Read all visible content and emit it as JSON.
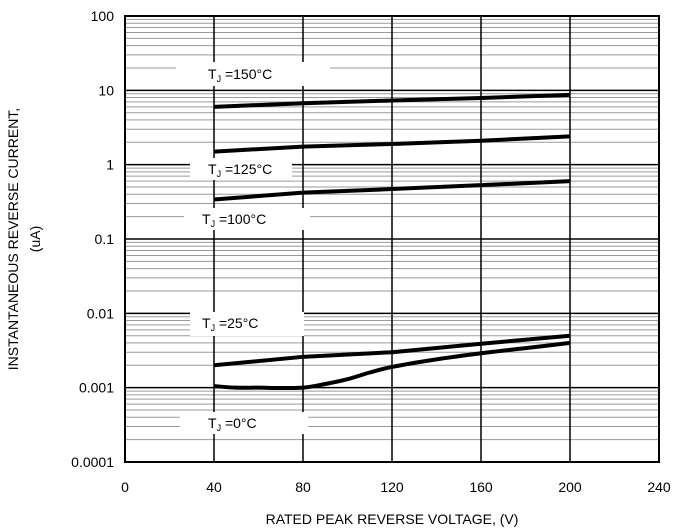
{
  "chart_data": {
    "type": "line",
    "title": "",
    "xlabel": "RATED PEAK REVERSE VOLTAGE, (V)",
    "ylabel_line1": "INSTANTANEOUS REVERSE CURRENT,",
    "ylabel_line2": "(uA)",
    "xlim": [
      0,
      240
    ],
    "ylim": [
      0.0001,
      100
    ],
    "yscale": "log",
    "grid": true,
    "x_ticks": [
      0,
      40,
      80,
      120,
      160,
      200,
      240
    ],
    "x_tick_labels": [
      "0",
      "40",
      "80",
      "120",
      "160",
      "200",
      "240"
    ],
    "y_ticks": [
      0.0001,
      0.001,
      0.01,
      0.1,
      1,
      10,
      100
    ],
    "y_tick_labels": [
      "0.0001",
      "0.001",
      "0.01",
      "0.1",
      "1",
      "10",
      "100"
    ],
    "series": [
      {
        "label_main": "T",
        "label_sub": "J",
        "label_rest": " =150°C",
        "x": [
          40,
          80,
          120,
          160,
          200
        ],
        "y": [
          6,
          6.7,
          7.3,
          7.9,
          8.7
        ]
      },
      {
        "label_main": "T",
        "label_sub": "J",
        "label_rest": " =125°C",
        "x": [
          40,
          80,
          120,
          160,
          200
        ],
        "y": [
          1.5,
          1.75,
          1.9,
          2.1,
          2.4
        ]
      },
      {
        "label_main": "T",
        "label_sub": "J",
        "label_rest": " =100°C",
        "x": [
          40,
          80,
          120,
          160,
          200
        ],
        "y": [
          0.34,
          0.42,
          0.47,
          0.53,
          0.6
        ]
      },
      {
        "label_main": "T",
        "label_sub": "J",
        "label_rest": " =25°C",
        "x": [
          40,
          80,
          120,
          160,
          200
        ],
        "y": [
          0.002,
          0.0026,
          0.003,
          0.0039,
          0.005
        ]
      },
      {
        "label_main": "T",
        "label_sub": "J",
        "label_rest": " =0°C",
        "x": [
          40,
          50,
          60,
          70,
          80,
          90,
          100,
          110,
          120,
          140,
          160,
          180,
          200
        ],
        "y": [
          0.00105,
          0.001,
          0.001,
          0.00099,
          0.001,
          0.00112,
          0.0013,
          0.0016,
          0.0019,
          0.0024,
          0.0029,
          0.0034,
          0.004
        ]
      }
    ]
  }
}
